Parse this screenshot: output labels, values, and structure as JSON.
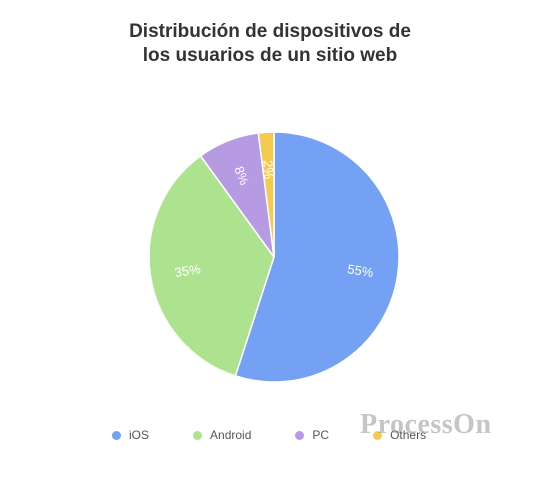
{
  "chart_data": {
    "type": "pie",
    "title_lines": [
      "Distribución de dispositivos de",
      "los usuarios de un sitio web"
    ],
    "categories": [
      "iOS",
      "Android",
      "PC",
      "Others"
    ],
    "values": [
      55,
      35,
      8,
      2
    ],
    "data_labels": [
      "55%",
      "35%",
      "8%",
      "2%"
    ],
    "colors": [
      "#75a1f5",
      "#ade38f",
      "#b69be3",
      "#f5cb4f"
    ],
    "legend_position": "bottom"
  },
  "watermark": "ProcessOn"
}
